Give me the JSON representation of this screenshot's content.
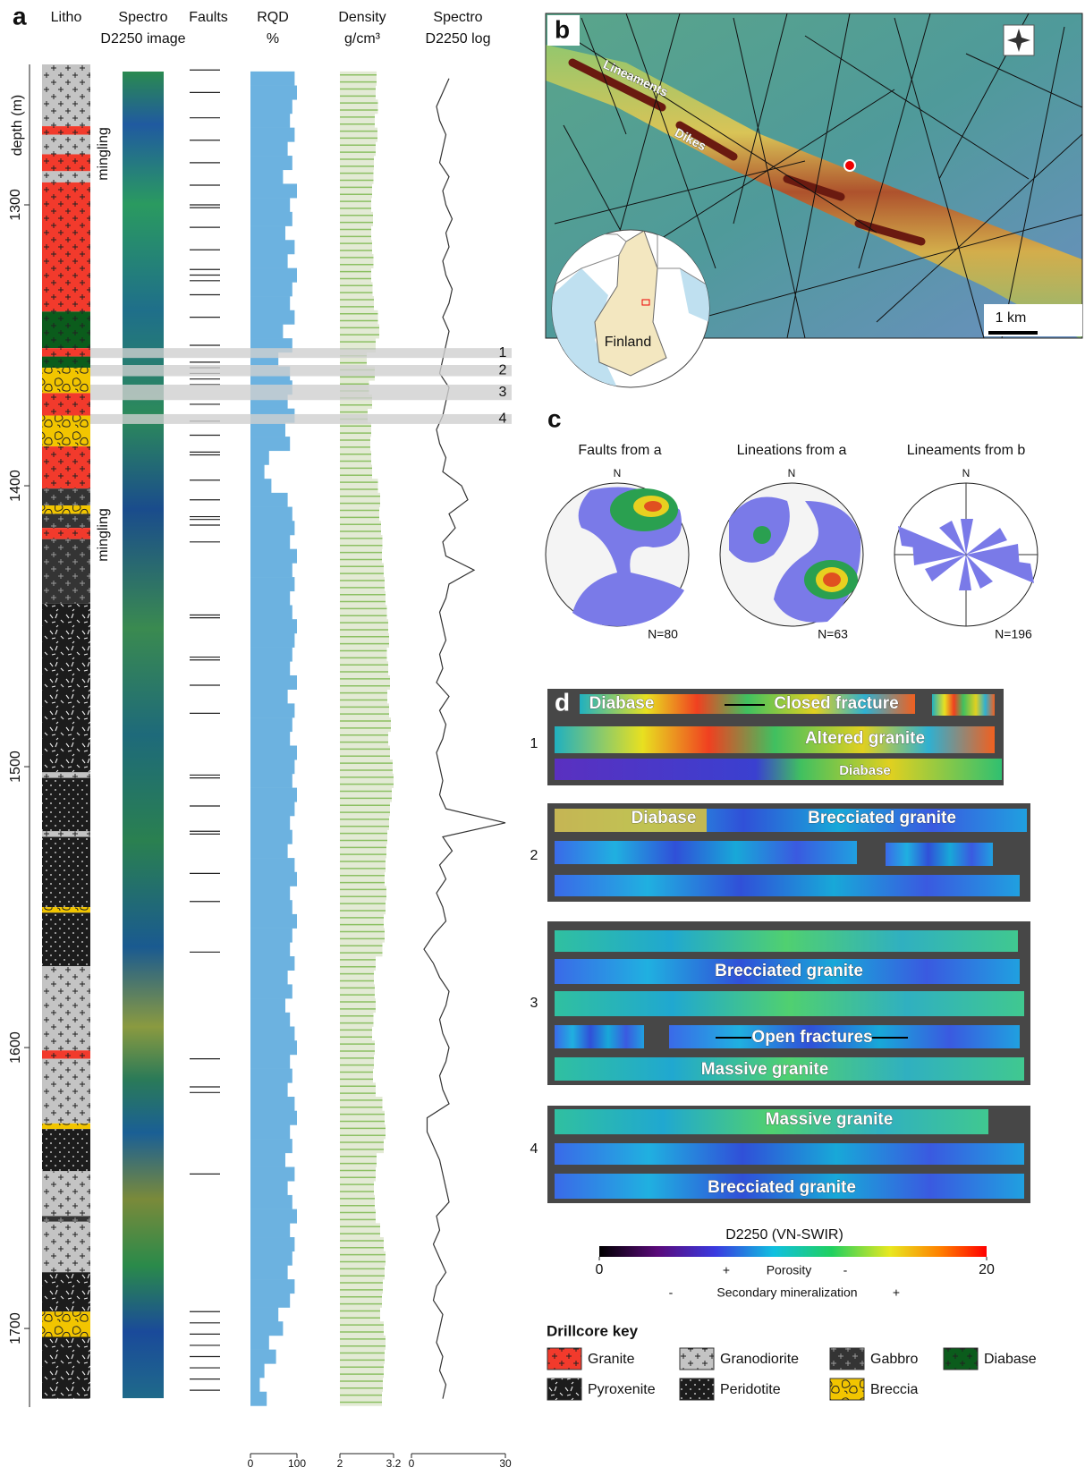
{
  "panel_a": {
    "label": "a",
    "headers": [
      [
        "Litho"
      ],
      [
        "Spectro",
        "D2250 image"
      ],
      [
        "Faults"
      ],
      [
        "RQD",
        "%"
      ],
      [
        "Density",
        "g/cm³"
      ],
      [
        "Spectro",
        "D2250 log"
      ]
    ],
    "depth_label": "depth (m)",
    "mingling": [
      "mingling",
      "mingling"
    ],
    "depth_lim": [
      1250,
      1728
    ],
    "depth_ticks": [
      1300,
      1400,
      1500,
      1600,
      1700
    ],
    "litho": [
      {
        "top": 1250,
        "bottom": 1272,
        "rock": "Granodiorite"
      },
      {
        "top": 1272,
        "bottom": 1275,
        "rock": "Granite"
      },
      {
        "top": 1275,
        "bottom": 1282,
        "rock": "Granodiorite"
      },
      {
        "top": 1282,
        "bottom": 1288,
        "rock": "Granite"
      },
      {
        "top": 1288,
        "bottom": 1292,
        "rock": "Granodiorite"
      },
      {
        "top": 1292,
        "bottom": 1338,
        "rock": "Granite"
      },
      {
        "top": 1338,
        "bottom": 1351,
        "rock": "Diabase"
      },
      {
        "top": 1351,
        "bottom": 1354,
        "rock": "Granite"
      },
      {
        "top": 1354,
        "bottom": 1358,
        "rock": "Diabase"
      },
      {
        "top": 1358,
        "bottom": 1367,
        "rock": "Breccia"
      },
      {
        "top": 1367,
        "bottom": 1375,
        "rock": "Granite"
      },
      {
        "top": 1375,
        "bottom": 1386,
        "rock": "Breccia"
      },
      {
        "top": 1386,
        "bottom": 1401,
        "rock": "Granite"
      },
      {
        "top": 1401,
        "bottom": 1407,
        "rock": "Gabbro"
      },
      {
        "top": 1407,
        "bottom": 1410,
        "rock": "Breccia"
      },
      {
        "top": 1410,
        "bottom": 1415,
        "rock": "Gabbro"
      },
      {
        "top": 1415,
        "bottom": 1419,
        "rock": "Granite"
      },
      {
        "top": 1419,
        "bottom": 1442,
        "rock": "Gabbro"
      },
      {
        "top": 1442,
        "bottom": 1502,
        "rock": "Pyroxenite"
      },
      {
        "top": 1502,
        "bottom": 1504,
        "rock": "Granodiorite"
      },
      {
        "top": 1504,
        "bottom": 1523,
        "rock": "Peridotite"
      },
      {
        "top": 1523,
        "bottom": 1525,
        "rock": "Granodiorite"
      },
      {
        "top": 1525,
        "bottom": 1550,
        "rock": "Peridotite"
      },
      {
        "top": 1550,
        "bottom": 1552,
        "rock": "Breccia"
      },
      {
        "top": 1552,
        "bottom": 1571,
        "rock": "Peridotite"
      },
      {
        "top": 1571,
        "bottom": 1601,
        "rock": "Granodiorite"
      },
      {
        "top": 1601,
        "bottom": 1604,
        "rock": "Granite"
      },
      {
        "top": 1604,
        "bottom": 1627,
        "rock": "Granodiorite"
      },
      {
        "top": 1627,
        "bottom": 1629,
        "rock": "Breccia"
      },
      {
        "top": 1629,
        "bottom": 1644,
        "rock": "Peridotite"
      },
      {
        "top": 1644,
        "bottom": 1660,
        "rock": "Granodiorite"
      },
      {
        "top": 1660,
        "bottom": 1662,
        "rock": "Gabbro"
      },
      {
        "top": 1662,
        "bottom": 1680,
        "rock": "Granodiorite"
      },
      {
        "top": 1680,
        "bottom": 1694,
        "rock": "Pyroxenite"
      },
      {
        "top": 1694,
        "bottom": 1703,
        "rock": "Breccia"
      },
      {
        "top": 1703,
        "bottom": 1725,
        "rock": "Pyroxenite"
      }
    ],
    "faults": [
      1252,
      1260,
      1269,
      1277,
      1285,
      1293,
      1300,
      1301,
      1308,
      1316,
      1323,
      1325,
      1327,
      1332,
      1340,
      1350,
      1356,
      1358,
      1360,
      1362,
      1364,
      1371,
      1377,
      1382,
      1388,
      1389,
      1398,
      1405,
      1411,
      1412,
      1414,
      1420,
      1446,
      1447,
      1461,
      1462,
      1471,
      1481,
      1503,
      1504,
      1514,
      1523,
      1524,
      1538,
      1548,
      1566,
      1604,
      1614,
      1616,
      1645,
      1694,
      1698,
      1702,
      1706,
      1710,
      1714,
      1718,
      1722
    ],
    "samples": [
      {
        "label": "1",
        "top": 1351,
        "bottom": 1354.5
      },
      {
        "label": "2",
        "top": 1357,
        "bottom": 1361
      },
      {
        "label": "3",
        "top": 1364,
        "bottom": 1369.5
      },
      {
        "label": "4",
        "top": 1374.5,
        "bottom": 1378
      }
    ],
    "depths": [
      1255,
      1260,
      1265,
      1270,
      1275,
      1280,
      1285,
      1290,
      1295,
      1300,
      1305,
      1310,
      1315,
      1320,
      1325,
      1330,
      1335,
      1340,
      1345,
      1350,
      1355,
      1360,
      1365,
      1370,
      1375,
      1380,
      1385,
      1390,
      1395,
      1400,
      1405,
      1410,
      1415,
      1420,
      1425,
      1430,
      1435,
      1440,
      1445,
      1450,
      1455,
      1460,
      1465,
      1470,
      1475,
      1480,
      1485,
      1490,
      1495,
      1500,
      1505,
      1510,
      1515,
      1520,
      1525,
      1530,
      1535,
      1540,
      1545,
      1550,
      1555,
      1560,
      1565,
      1570,
      1575,
      1580,
      1585,
      1590,
      1595,
      1600,
      1605,
      1610,
      1615,
      1620,
      1625,
      1630,
      1635,
      1640,
      1645,
      1650,
      1655,
      1660,
      1665,
      1670,
      1675,
      1680,
      1685,
      1690,
      1695,
      1700,
      1705,
      1710,
      1715,
      1720,
      1725
    ],
    "rqd": {
      "lim": [
        0,
        100
      ],
      "ticks": [
        0,
        100
      ],
      "values": [
        95,
        100,
        90,
        85,
        95,
        80,
        90,
        70,
        100,
        85,
        90,
        75,
        95,
        80,
        100,
        90,
        85,
        95,
        70,
        90,
        60,
        85,
        90,
        80,
        95,
        75,
        85,
        40,
        30,
        45,
        80,
        90,
        95,
        85,
        100,
        90,
        95,
        85,
        90,
        100,
        95,
        90,
        85,
        100,
        80,
        95,
        90,
        85,
        100,
        95,
        90,
        100,
        95,
        85,
        90,
        80,
        95,
        100,
        85,
        90,
        100,
        90,
        85,
        95,
        80,
        90,
        75,
        85,
        95,
        100,
        85,
        90,
        80,
        95,
        100,
        85,
        90,
        75,
        95,
        80,
        90,
        100,
        85,
        95,
        90,
        80,
        95,
        85,
        60,
        70,
        40,
        55,
        30,
        20,
        35
      ]
    },
    "density": {
      "lim": [
        2,
        3.2
      ],
      "ticks": [
        2,
        3.2
      ],
      "values": [
        2.82,
        2.8,
        2.85,
        2.78,
        2.84,
        2.8,
        2.76,
        2.75,
        2.72,
        2.7,
        2.74,
        2.7,
        2.72,
        2.75,
        2.7,
        2.73,
        2.76,
        2.85,
        2.88,
        2.8,
        2.6,
        2.78,
        2.65,
        2.72,
        2.62,
        2.7,
        2.68,
        2.7,
        2.72,
        2.85,
        2.9,
        2.88,
        2.92,
        2.95,
        2.94,
        2.98,
        3.0,
        3.02,
        3.05,
        3.08,
        3.1,
        3.05,
        3.08,
        3.12,
        3.06,
        3.1,
        3.14,
        3.08,
        3.12,
        3.18,
        3.2,
        3.16,
        3.12,
        3.1,
        3.06,
        3.04,
        3.02,
        3.0,
        3.04,
        3.02,
        2.98,
        3.0,
        2.95,
        2.8,
        2.76,
        2.78,
        2.8,
        2.75,
        2.72,
        2.78,
        2.76,
        2.74,
        2.8,
        2.95,
        3.0,
        3.02,
        2.98,
        2.82,
        2.8,
        2.76,
        2.78,
        2.8,
        2.9,
        2.98,
        3.02,
        3.0,
        2.96,
        2.94,
        2.9,
        2.98,
        3.02,
        3.0,
        2.98,
        2.96,
        2.94
      ]
    },
    "spectro_log": {
      "lim": [
        0,
        30
      ],
      "ticks": [
        0,
        30
      ],
      "values": [
        12,
        10,
        8,
        9,
        11,
        10,
        9,
        12,
        10,
        11,
        13,
        11,
        12,
        10,
        11,
        13,
        12,
        10,
        12,
        11,
        10,
        9,
        12,
        11,
        10,
        8,
        9,
        11,
        10,
        16,
        18,
        12,
        14,
        10,
        11,
        20,
        12,
        11,
        9,
        10,
        11,
        9,
        10,
        8,
        12,
        9,
        11,
        10,
        8,
        9,
        10,
        9,
        11,
        30,
        10,
        13,
        9,
        11,
        8,
        10,
        11,
        7,
        4,
        7,
        9,
        12,
        11,
        9,
        10,
        12,
        11,
        9,
        10,
        12,
        5,
        5,
        7,
        9,
        10,
        11,
        12,
        8,
        9,
        7,
        9,
        11,
        8,
        7,
        10,
        9,
        8,
        10,
        9,
        11,
        10
      ]
    }
  },
  "panel_b": {
    "label": "b",
    "annotations": [
      "Lineaments",
      "Dikes"
    ],
    "inset_label": "Finland",
    "scale_bar": "1 km"
  },
  "panel_c": {
    "label": "c",
    "stereonets": [
      {
        "title": "Faults from a",
        "north": "N",
        "count": "N=80"
      },
      {
        "title": "Lineations from a",
        "north": "N",
        "count": "N=63"
      },
      {
        "title": "Lineaments from b",
        "north": "N",
        "count": "N=196"
      }
    ]
  },
  "panel_d": {
    "label": "d",
    "cores": [
      {
        "label": "1",
        "annotations": [
          "Diabase",
          "Closed fracture",
          "Altered granite",
          "Diabase"
        ]
      },
      {
        "label": "2",
        "annotations": [
          "Diabase",
          "Brecciated granite"
        ]
      },
      {
        "label": "3",
        "annotations": [
          "Brecciated granite",
          "Open fractures",
          "Massive granite"
        ]
      },
      {
        "label": "4",
        "annotations": [
          "Massive granite",
          "Brecciated granite"
        ]
      }
    ]
  },
  "colorbar": {
    "title": "D2250 (VN-SWIR)",
    "lim": [
      0,
      20
    ],
    "ticks": [
      0,
      20
    ],
    "rows": [
      [
        "+",
        "Porosity",
        "-"
      ],
      [
        "-",
        "Secondary mineralization",
        "+"
      ]
    ]
  },
  "key": {
    "title": "Drillcore key",
    "items": [
      {
        "name": "Granite",
        "color": "#f23a2c",
        "pattern": "plus"
      },
      {
        "name": "Granodiorite",
        "color": "#c4c4c4",
        "pattern": "plus"
      },
      {
        "name": "Gabbro",
        "color": "#343434",
        "pattern": "plus-light"
      },
      {
        "name": "Diabase",
        "color": "#0b5c1c",
        "pattern": "plus"
      },
      {
        "name": "Pyroxenite",
        "color": "#1c1c1c",
        "pattern": "dash"
      },
      {
        "name": "Peridotite",
        "color": "#1c1c1c",
        "pattern": "dot"
      },
      {
        "name": "Breccia",
        "color": "#f2c500",
        "pattern": "blob"
      }
    ]
  }
}
